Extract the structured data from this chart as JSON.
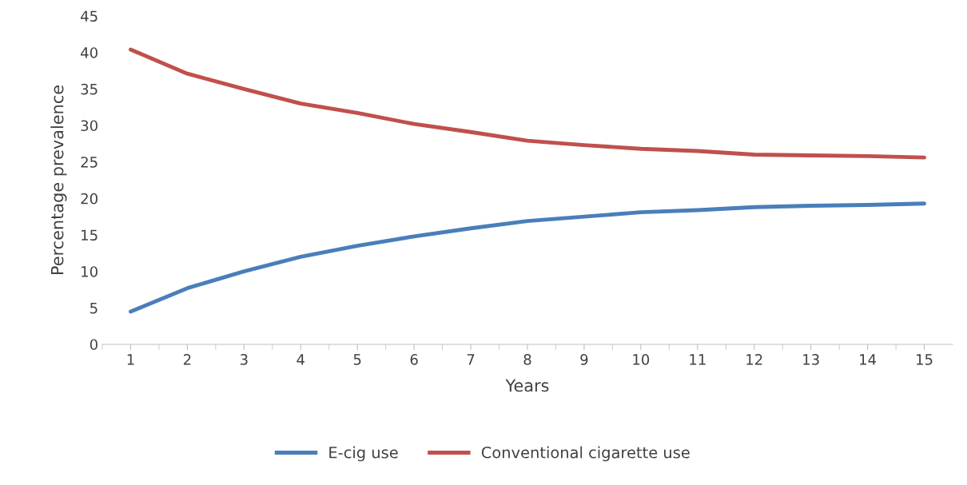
{
  "chart_data": {
    "type": "line",
    "xlabel": "Years",
    "ylabel": "Percentage prevalence",
    "categories": [
      "1",
      "2",
      "3",
      "4",
      "5",
      "6",
      "7",
      "8",
      "9",
      "10",
      "11",
      "12",
      "13",
      "14",
      "15"
    ],
    "series": [
      {
        "name": "E-cig use",
        "color": "#4a7ebb",
        "values": [
          4.5,
          7.7,
          10.0,
          12.0,
          13.5,
          14.8,
          15.9,
          16.9,
          17.5,
          18.1,
          18.4,
          18.8,
          19.0,
          19.1,
          19.3
        ]
      },
      {
        "name": "Conventional cigarette use",
        "color": "#c0504d",
        "values": [
          40.4,
          37.1,
          35.0,
          33.0,
          31.7,
          30.2,
          29.1,
          27.9,
          27.3,
          26.8,
          26.5,
          26.0,
          25.9,
          25.8,
          25.6
        ]
      }
    ],
    "ylim": [
      0,
      45
    ],
    "yticks": [
      0,
      5,
      10,
      15,
      20,
      25,
      30,
      35,
      40,
      45
    ],
    "grid": false,
    "legend": "bottom",
    "marker": "none",
    "line_style": "solid"
  }
}
